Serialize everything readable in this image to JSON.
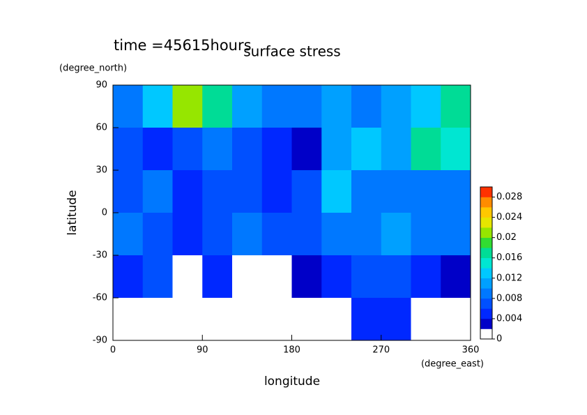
{
  "chart_data": {
    "type": "contour",
    "title": "surface stress",
    "annotation": "time =45615hours",
    "x_label": "longitude",
    "x_unit": "(degree_east)",
    "y_label": "latitude",
    "y_unit": "(degree_north)",
    "xlim": [
      0,
      360
    ],
    "xticks": [
      0,
      90,
      180,
      270,
      360
    ],
    "ylim": [
      -90,
      90
    ],
    "yticks": [
      -90,
      -60,
      -30,
      0,
      30,
      60,
      90
    ],
    "lon": [
      15,
      45,
      75,
      105,
      135,
      165,
      195,
      225,
      255,
      285,
      315,
      345
    ],
    "lat": [
      75,
      45,
      15,
      -15,
      -45,
      -75
    ],
    "z": [
      [
        0.008,
        0.012,
        0.02,
        0.016,
        0.01,
        0.008,
        0.008,
        0.01,
        0.008,
        0.01,
        0.012,
        0.016
      ],
      [
        0.006,
        0.004,
        0.006,
        0.008,
        0.006,
        0.004,
        0.002,
        0.01,
        0.012,
        0.01,
        0.016,
        0.014
      ],
      [
        0.006,
        0.008,
        0.004,
        0.006,
        0.006,
        0.004,
        0.006,
        0.012,
        0.008,
        0.008,
        0.008,
        0.008
      ],
      [
        0.008,
        0.006,
        0.004,
        0.006,
        0.008,
        0.006,
        0.006,
        0.008,
        0.008,
        0.01,
        0.008,
        0.008
      ],
      [
        0.004,
        0.006,
        0.001,
        0.004,
        0,
        0,
        0.002,
        0.004,
        0.006,
        0.006,
        0.004,
        0.002
      ],
      [
        0,
        0,
        0,
        0,
        0,
        0,
        0,
        0,
        0.004,
        0.004,
        0,
        0
      ]
    ],
    "clim": [
      0,
      0.03
    ],
    "cticks": [
      0,
      0.004,
      0.008,
      0.012,
      0.016,
      0.02,
      0.024,
      0.028
    ],
    "colors": [
      "#ffffff",
      "#0000c8",
      "#0028ff",
      "#0050ff",
      "#0078ff",
      "#00a0ff",
      "#00c8ff",
      "#00e6d2",
      "#00dc96",
      "#32dc32",
      "#96e600",
      "#e6e600",
      "#ffc800",
      "#ff8c00",
      "#ff3200"
    ]
  }
}
